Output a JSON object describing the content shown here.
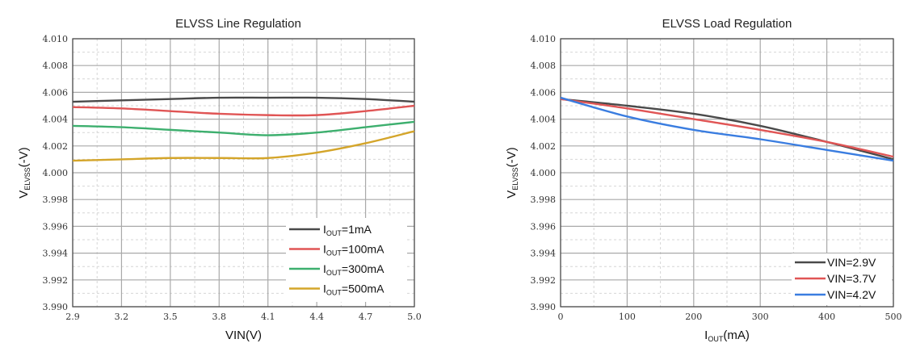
{
  "chart_data": [
    {
      "type": "line",
      "title": "ELVSS Line Regulation",
      "xlabel": "VIN(V)",
      "ylabel": {
        "main": "V",
        "sub": "ELVSS",
        "suffix": "(-V)"
      },
      "xlim": [
        2.9,
        5.0
      ],
      "ylim": [
        3.99,
        4.01
      ],
      "grid": true,
      "legend_position": "bottom-right",
      "x_ticks": [
        {
          "value": 2.9,
          "label": "2.9"
        },
        {
          "value": 3.2,
          "label": "3.2"
        },
        {
          "value": 3.5,
          "label": "3.5"
        },
        {
          "value": 3.8,
          "label": "3.8"
        },
        {
          "value": 4.1,
          "label": "4.1"
        },
        {
          "value": 4.4,
          "label": "4.4"
        },
        {
          "value": 4.7,
          "label": "4.7"
        },
        {
          "value": 5.0,
          "label": "5.0"
        }
      ],
      "y_ticks": [
        {
          "value": 3.99,
          "label": "3.990"
        },
        {
          "value": 3.992,
          "label": "3.992"
        },
        {
          "value": 3.994,
          "label": "3.994"
        },
        {
          "value": 3.996,
          "label": "3.996"
        },
        {
          "value": 3.998,
          "label": "3.998"
        },
        {
          "value": 4.0,
          "label": "4.000"
        },
        {
          "value": 4.002,
          "label": "4.002"
        },
        {
          "value": 4.004,
          "label": "4.004"
        },
        {
          "value": 4.006,
          "label": "4.006"
        },
        {
          "value": 4.008,
          "label": "4.008"
        },
        {
          "value": 4.01,
          "label": "4.010"
        }
      ],
      "series": [
        {
          "name": "IOUT=1mA",
          "legend_main": "I",
          "legend_sub": "OUT",
          "legend_suffix": "=1mA",
          "color": "#4a4a4a",
          "x": [
            2.9,
            3.2,
            3.5,
            3.8,
            4.1,
            4.4,
            4.7,
            5.0
          ],
          "y": [
            4.0053,
            4.0054,
            4.0055,
            4.0056,
            4.0056,
            4.0056,
            4.0055,
            4.0053
          ]
        },
        {
          "name": "IOUT=100mA",
          "legend_main": "I",
          "legend_sub": "OUT",
          "legend_suffix": "=100mA",
          "color": "#e05555",
          "x": [
            2.9,
            3.2,
            3.5,
            3.8,
            4.1,
            4.4,
            4.7,
            5.0
          ],
          "y": [
            4.0049,
            4.0048,
            4.0046,
            4.0044,
            4.0043,
            4.0043,
            4.0046,
            4.005
          ]
        },
        {
          "name": "IOUT=300mA",
          "legend_main": "I",
          "legend_sub": "OUT",
          "legend_suffix": "=300mA",
          "color": "#3daf6e",
          "x": [
            2.9,
            3.2,
            3.5,
            3.8,
            4.1,
            4.4,
            4.7,
            5.0
          ],
          "y": [
            4.0035,
            4.0034,
            4.0032,
            4.003,
            4.0028,
            4.003,
            4.0034,
            4.0038
          ]
        },
        {
          "name": "IOUT=500mA",
          "legend_main": "I",
          "legend_sub": "OUT",
          "legend_suffix": "=500mA",
          "color": "#d4a52a",
          "x": [
            2.9,
            3.2,
            3.5,
            3.8,
            4.1,
            4.4,
            4.7,
            5.0
          ],
          "y": [
            4.0009,
            4.001,
            4.0011,
            4.0011,
            4.0011,
            4.0015,
            4.0022,
            4.0031
          ]
        }
      ]
    },
    {
      "type": "line",
      "title": "ELVSS Load Regulation",
      "xlabel": {
        "main": "I",
        "sub": "OUT",
        "suffix": "(mA)"
      },
      "ylabel": {
        "main": "V",
        "sub": "ELVSS",
        "suffix": "(-V)"
      },
      "xlim": [
        0,
        500
      ],
      "ylim": [
        3.99,
        4.01
      ],
      "grid": true,
      "legend_position": "bottom-right",
      "x_ticks": [
        {
          "value": 0,
          "label": "0"
        },
        {
          "value": 100,
          "label": "100"
        },
        {
          "value": 200,
          "label": "200"
        },
        {
          "value": 300,
          "label": "300"
        },
        {
          "value": 400,
          "label": "400"
        },
        {
          "value": 500,
          "label": "500"
        }
      ],
      "y_ticks": [
        {
          "value": 3.99,
          "label": "3.990"
        },
        {
          "value": 3.992,
          "label": "3.992"
        },
        {
          "value": 3.994,
          "label": "3.994"
        },
        {
          "value": 3.996,
          "label": "3.996"
        },
        {
          "value": 3.998,
          "label": "3.998"
        },
        {
          "value": 4.0,
          "label": "4.000"
        },
        {
          "value": 4.002,
          "label": "4.002"
        },
        {
          "value": 4.004,
          "label": "4.004"
        },
        {
          "value": 4.006,
          "label": "4.006"
        },
        {
          "value": 4.008,
          "label": "4.008"
        },
        {
          "value": 4.01,
          "label": "4.010"
        }
      ],
      "series": [
        {
          "name": "VIN=2.9V",
          "legend_main": "VIN=2.9V",
          "legend_sub": "",
          "legend_suffix": "",
          "color": "#4a4a4a",
          "x": [
            0,
            100,
            200,
            300,
            400,
            500
          ],
          "y": [
            4.0055,
            4.005,
            4.0044,
            4.0035,
            4.0023,
            4.001
          ]
        },
        {
          "name": "VIN=3.7V",
          "legend_main": "VIN=3.7V",
          "legend_sub": "",
          "legend_suffix": "",
          "color": "#e05555",
          "x": [
            0,
            100,
            200,
            300,
            400,
            500
          ],
          "y": [
            4.0055,
            4.0048,
            4.004,
            4.0032,
            4.0023,
            4.0012
          ]
        },
        {
          "name": "VIN=4.2V",
          "legend_main": "VIN=4.2V",
          "legend_sub": "",
          "legend_suffix": "",
          "color": "#3a7de0",
          "x": [
            0,
            100,
            200,
            300,
            400,
            500
          ],
          "y": [
            4.0056,
            4.0042,
            4.0032,
            4.0025,
            4.0017,
            4.0009
          ]
        }
      ]
    }
  ]
}
